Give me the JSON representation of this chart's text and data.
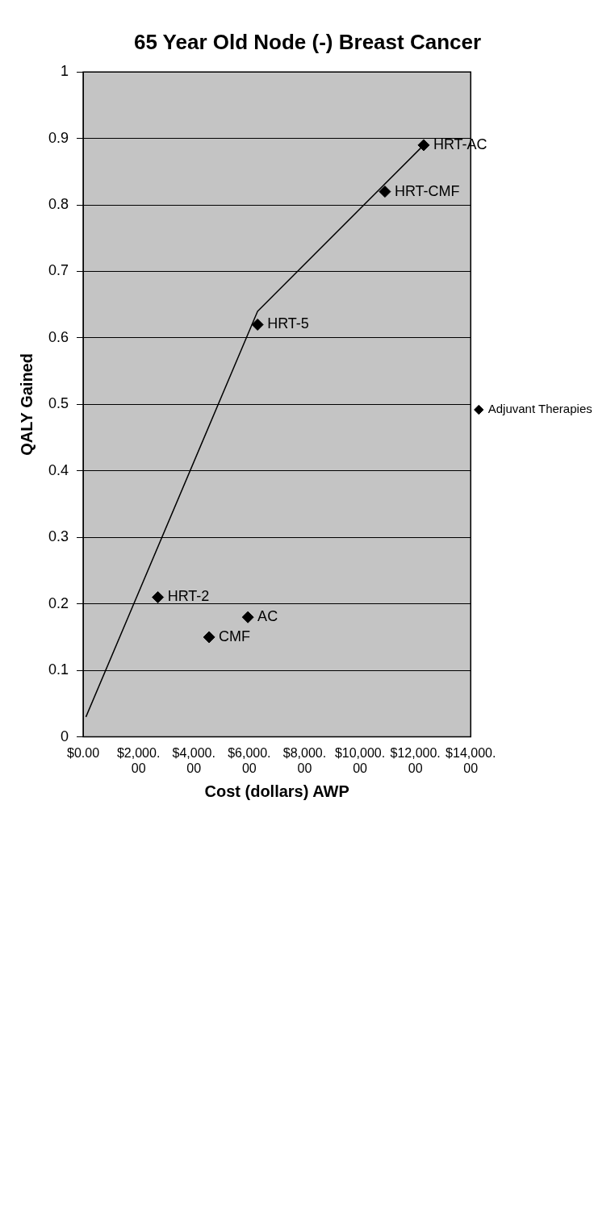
{
  "chart_data": {
    "type": "scatter",
    "title": "65 Year Old Node (-) Breast Cancer",
    "xlabel": "Cost (dollars) AWP",
    "ylabel": "QALY Gained",
    "xlim": [
      0,
      14000
    ],
    "xticks": [
      {
        "value": 0,
        "label": "$0.00"
      },
      {
        "value": 2000,
        "label": "$2,000.00"
      },
      {
        "value": 4000,
        "label": "$4,000.00"
      },
      {
        "value": 6000,
        "label": "$6,000.00"
      },
      {
        "value": 8000,
        "label": "$8,000.00"
      },
      {
        "value": 10000,
        "label": "$10,000.00"
      },
      {
        "value": 12000,
        "label": "$12,000.00"
      },
      {
        "value": 14000,
        "label": "$14,000.00"
      }
    ],
    "ylim": [
      0,
      1
    ],
    "yticks": [
      0,
      0.1,
      0.2,
      0.3,
      0.4,
      0.5,
      0.6,
      0.7,
      0.8,
      0.9,
      1
    ],
    "grid": "y",
    "legend": "right",
    "marker": "diamond",
    "series": [
      {
        "name": "Adjuvant Therapies",
        "color": "#000000",
        "x": [
          2700,
          4550,
          5950,
          6300,
          10900,
          12300
        ],
        "values": [
          0.21,
          0.15,
          0.18,
          0.62,
          0.82,
          0.89
        ]
      },
      {
        "type": "line",
        "color": "#000000",
        "marker": "none",
        "x": [
          100,
          6300,
          12300
        ],
        "values": [
          0.03,
          0.64,
          0.89
        ]
      }
    ],
    "annotations": [
      {
        "text": "HRT-2",
        "x": 2700,
        "y": 0.21
      },
      {
        "text": "CMF",
        "x": 4550,
        "y": 0.15
      },
      {
        "text": "AC",
        "x": 5950,
        "y": 0.18
      },
      {
        "text": "HRT-5",
        "x": 6300,
        "y": 0.62
      },
      {
        "text": "HRT-CMF",
        "x": 10900,
        "y": 0.82
      },
      {
        "text": "HRT-AC",
        "x": 12300,
        "y": 0.89
      }
    ]
  }
}
